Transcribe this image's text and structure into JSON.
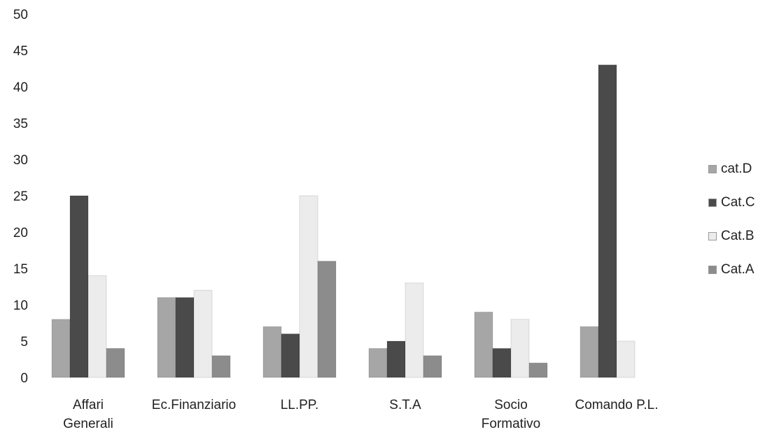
{
  "chart_data": {
    "type": "bar",
    "categories": [
      [
        "Affari",
        "Generali"
      ],
      [
        "Ec.Finanziario"
      ],
      [
        "LL.PP."
      ],
      [
        "S.T.A"
      ],
      [
        "Socio",
        "Formativo"
      ],
      [
        "Comando P.L."
      ]
    ],
    "series": [
      {
        "name": "cat.D",
        "color": "#a6a6a6",
        "values": [
          8,
          11,
          7,
          4,
          9,
          7
        ]
      },
      {
        "name": "Cat.C",
        "color": "#4a4a4a",
        "values": [
          25,
          11,
          6,
          5,
          4,
          43
        ]
      },
      {
        "name": "Cat.B",
        "color": "#ececec",
        "values": [
          14,
          12,
          25,
          13,
          8,
          5
        ]
      },
      {
        "name": "Cat.A",
        "color": "#8c8c8c",
        "values": [
          4,
          3,
          16,
          3,
          2,
          0
        ]
      }
    ],
    "yticks": [
      "0",
      "5",
      "10",
      "15",
      "20",
      "25",
      "30",
      "35",
      "40",
      "45",
      "50"
    ],
    "ylim": [
      0,
      50
    ],
    "grid": false,
    "legend_position": "right"
  }
}
